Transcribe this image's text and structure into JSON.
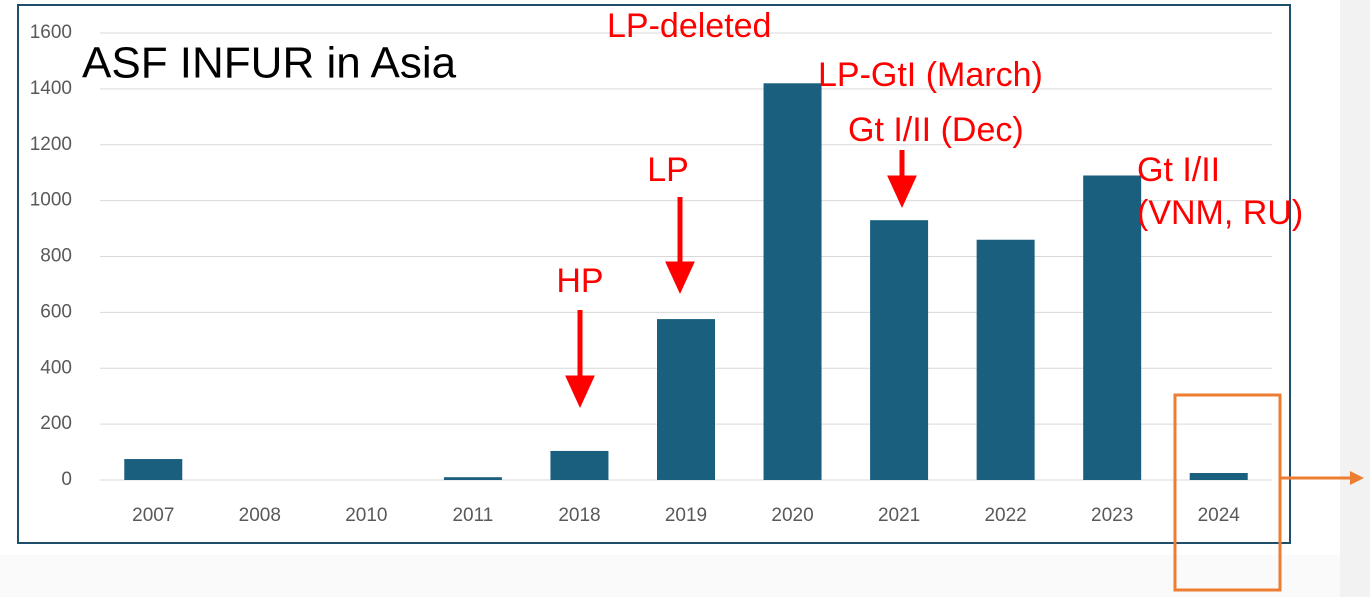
{
  "chart_data": {
    "type": "bar",
    "title": "ASF INFUR in Asia",
    "categories": [
      "2007",
      "2008",
      "2010",
      "2011",
      "2018",
      "2019",
      "2020",
      "2021",
      "2022",
      "2023",
      "2024"
    ],
    "values": [
      75,
      0,
      0,
      10,
      104,
      576,
      1420,
      930,
      860,
      1090,
      25
    ],
    "color": "#1a5f7e",
    "ylim": [
      0,
      1600
    ],
    "yticks": [
      0,
      200,
      400,
      600,
      800,
      1000,
      1200,
      1400,
      1600
    ],
    "grid": true,
    "annotations": [
      "LP-deleted",
      "LP-GtI (March)",
      "Gt I/II (Dec)",
      "Gt I/II",
      "(VNM, RU)",
      "HP",
      "LP"
    ]
  }
}
